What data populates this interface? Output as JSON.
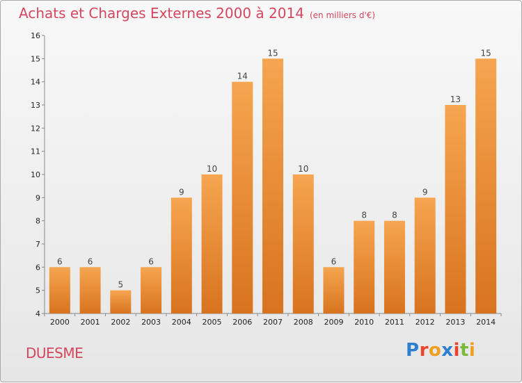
{
  "title": "Achats et Charges Externes 2000 à 2014",
  "subtitle": "(en milliers d'€)",
  "place": "DUESME",
  "logo": {
    "text": "Proxiti",
    "letters": [
      "P",
      "r",
      "o",
      "x",
      "i",
      "t",
      "i"
    ],
    "colors": [
      "#2f7fd0",
      "#e8442e",
      "#f0a020",
      "#2f7fd0",
      "#e8442e",
      "#7bb93a",
      "#f0a020"
    ]
  },
  "colors": {
    "title": "#d4475e",
    "bar_top": "#f6a550",
    "bar_bottom": "#d8731f",
    "axis": "#888888",
    "tick_text": "#222222"
  },
  "chart_data": {
    "type": "bar",
    "title": "Achats et Charges Externes 2000 à 2014",
    "xlabel": "",
    "ylabel": "",
    "ylim": [
      4,
      16
    ],
    "yticks": [
      4,
      5,
      6,
      7,
      8,
      9,
      10,
      11,
      12,
      13,
      14,
      15,
      16
    ],
    "categories": [
      "2000",
      "2001",
      "2002",
      "2003",
      "2004",
      "2005",
      "2006",
      "2007",
      "2008",
      "2009",
      "2010",
      "2011",
      "2012",
      "2013",
      "2014"
    ],
    "values": [
      6,
      6,
      5,
      6,
      9,
      10,
      14,
      15,
      10,
      6,
      8,
      8,
      9,
      13,
      15
    ],
    "grid": false,
    "legend": "none"
  }
}
